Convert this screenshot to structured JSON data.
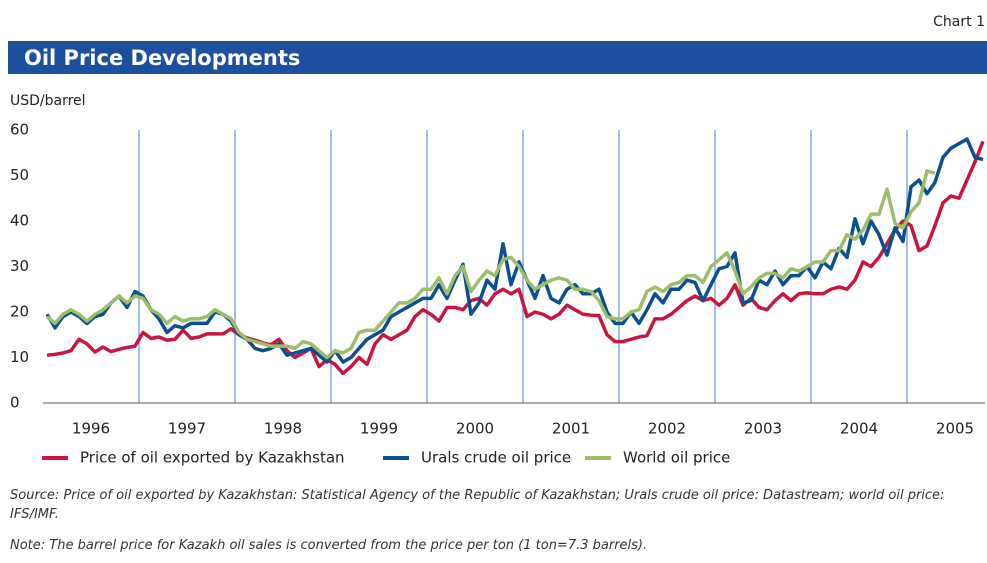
{
  "chart_data": {
    "type": "line",
    "chart_label": "Chart 1",
    "title": "Oil Price Developments",
    "y_label": "USD/barrel",
    "categories": [
      null,
      null,
      null,
      null,
      null,
      "1996",
      null,
      null,
      null,
      null,
      null,
      null,
      null,
      null,
      null,
      null,
      null,
      "1997",
      null,
      null,
      null,
      null,
      null,
      null,
      null,
      null,
      null,
      null,
      null,
      "1998",
      null,
      null,
      null,
      null,
      null,
      null,
      null,
      null,
      null,
      null,
      null,
      "1999",
      null,
      null,
      null,
      null,
      null,
      null,
      null,
      null,
      null,
      null,
      null,
      "2000",
      null,
      null,
      null,
      null,
      null,
      null,
      null,
      null,
      null,
      null,
      null,
      "2001",
      null,
      null,
      null,
      null,
      null,
      null,
      null,
      null,
      null,
      null,
      null,
      "2002",
      null,
      null,
      null,
      null,
      null,
      null,
      null,
      null,
      null,
      null,
      null,
      "2003",
      null,
      null,
      null,
      null,
      null,
      null,
      null,
      null,
      null,
      null,
      null,
      "2004",
      null,
      null,
      null,
      null,
      null,
      null,
      null,
      null,
      null,
      null,
      null,
      "2005",
      null,
      null,
      null,
      null
    ],
    "series": [
      {
        "name": "Price of oil exported by Kazakhstan",
        "color": "#c8173f",
        "values": [
          10.5,
          10.7,
          11,
          11.5,
          14,
          13,
          11.2,
          12.3,
          11.3,
          11.8,
          12.2,
          12.5,
          15.5,
          14.2,
          14.5,
          13.8,
          14,
          16,
          14.2,
          14.5,
          15.2,
          15.2,
          15.2,
          16.3,
          15,
          14.3,
          13.8,
          13.2,
          12.8,
          14,
          11.5,
          10,
          11,
          12,
          8,
          9.5,
          8.5,
          6.5,
          8,
          10,
          8.5,
          13,
          15,
          14,
          15,
          16,
          19,
          20.5,
          19.5,
          18,
          21,
          21,
          20.5,
          22.5,
          23,
          21.5,
          24,
          25,
          24,
          25,
          19,
          20,
          19.5,
          18.5,
          19.5,
          21.5,
          20.5,
          19.5,
          19.3,
          19.2,
          15,
          13.5,
          13.5,
          14,
          14.5,
          14.8,
          18.5,
          18.5,
          19.5,
          21,
          22.5,
          23.5,
          22.5,
          23,
          21.5,
          23,
          26,
          21.5,
          23,
          21,
          20.5,
          22.5,
          24,
          22.5,
          24,
          24.2,
          24,
          24,
          25,
          25.5,
          25,
          27,
          31,
          30,
          32,
          35,
          38,
          40,
          39,
          33.5,
          34.5,
          39,
          44,
          45.5,
          45,
          49,
          53,
          57.5
        ]
      },
      {
        "name": "Urals crude oil price",
        "color": "#0b4f8f",
        "values": [
          19.5,
          16.5,
          19,
          20,
          19,
          17.5,
          19,
          19.5,
          22,
          23.5,
          21,
          24.5,
          23.5,
          20.5,
          18.5,
          15.5,
          17,
          16.5,
          17.5,
          17.5,
          17.5,
          20,
          19.5,
          18,
          15,
          14,
          12,
          11.5,
          12,
          13,
          10.5,
          11,
          11.5,
          12,
          10.5,
          9,
          11.5,
          9,
          10,
          12,
          14,
          15,
          16,
          19,
          20,
          21,
          22,
          23,
          23,
          26,
          23,
          27,
          30.5,
          19.5,
          22,
          27,
          25,
          35,
          26,
          31,
          27,
          23,
          28,
          23,
          22,
          25,
          26,
          24,
          24,
          25,
          20,
          17.5,
          17.5,
          20,
          17.5,
          20.5,
          24,
          22,
          25,
          25,
          27,
          26.5,
          22.5,
          26,
          29.5,
          30,
          33,
          22,
          22.5,
          27,
          26,
          29,
          26,
          28,
          28,
          30,
          27.5,
          31,
          29.5,
          34,
          32,
          40.5,
          35,
          40,
          37,
          32.5,
          38.5,
          35.5,
          47.5,
          49,
          46,
          48.5,
          54,
          56,
          57,
          58,
          54,
          53.5
        ]
      },
      {
        "name": "World oil price",
        "color": "#9cbd6b",
        "values": [
          19,
          17.5,
          19.5,
          20.5,
          19.5,
          18,
          19.5,
          20.5,
          22,
          23.5,
          22,
          23.5,
          23,
          20.5,
          19.5,
          17.5,
          19,
          18,
          18.5,
          18.5,
          19,
          20.5,
          19.5,
          18.5,
          15.5,
          14,
          13.5,
          13,
          12.5,
          12.5,
          12.5,
          12,
          13.5,
          13,
          11.5,
          10,
          11.5,
          11,
          12,
          15.5,
          16,
          16,
          18,
          20,
          22,
          22,
          23,
          25,
          25,
          27.5,
          24,
          28,
          30,
          24.5,
          27,
          29,
          28,
          31.5,
          32,
          30,
          27,
          25,
          26,
          27,
          27.5,
          27,
          25,
          25,
          24.5,
          22.5,
          19,
          18.5,
          18.5,
          20,
          20.5,
          24.5,
          25.5,
          24.5,
          26,
          26.5,
          28,
          28,
          26.5,
          30,
          31.5,
          33,
          29,
          24,
          25.5,
          27.5,
          28.5,
          28.5,
          27.5,
          29.5,
          29,
          30,
          31,
          31,
          33.5,
          33.5,
          37,
          36,
          38,
          41.5,
          41.5,
          47,
          39.5,
          38.5,
          42,
          44,
          51,
          50.5,
          null,
          null,
          null,
          null,
          null,
          null
        ]
      }
    ],
    "ylim": [
      0,
      60
    ],
    "yticks": [
      0,
      10,
      20,
      30,
      40,
      50,
      60
    ],
    "legend": "bottom",
    "source": "Source: Price of oil exported by Kazakhstan: Statistical Agency of the Republic of Kazakhstan; Urals crude oil price: Datastream; world oil price: IFS/IMF.",
    "note": "Note: The barrel price for Kazakh oil sales is converted from the price per ton (1 ton=7.3 barrels)."
  }
}
